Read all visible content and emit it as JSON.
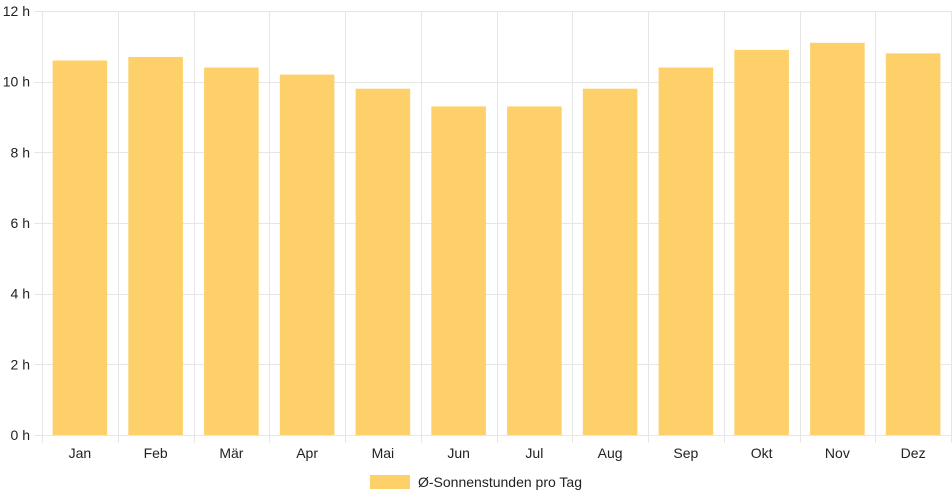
{
  "chart_data": {
    "type": "bar",
    "categories": [
      "Jan",
      "Feb",
      "Mär",
      "Apr",
      "Mai",
      "Jun",
      "Jul",
      "Aug",
      "Sep",
      "Okt",
      "Nov",
      "Dez"
    ],
    "series": [
      {
        "name": "Ø-Sonnenstunden pro Tag",
        "values": [
          10.6,
          10.7,
          10.4,
          10.2,
          9.8,
          9.3,
          9.3,
          9.8,
          10.4,
          10.9,
          11.1,
          10.8
        ],
        "color": "#fdd069"
      }
    ],
    "ylim": [
      0,
      12
    ],
    "y_ticks": [
      0,
      2,
      4,
      6,
      8,
      10,
      12
    ],
    "y_tick_labels": [
      "0 h",
      "2 h",
      "4 h",
      "6 h",
      "8 h",
      "10 h",
      "12 h"
    ],
    "grid": true,
    "grid_color": "#e6e6e6",
    "legend_position": "bottom",
    "title": "",
    "xlabel": "",
    "ylabel": ""
  }
}
